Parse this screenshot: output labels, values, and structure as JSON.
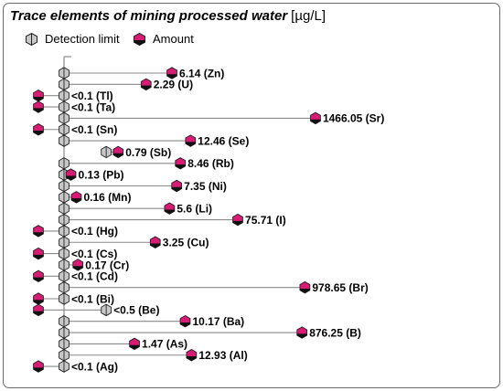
{
  "title": "Trace elements of mining processed water",
  "unit": "[µg/L]",
  "legend": {
    "detection_limit": "Detection limit",
    "amount": "Amount"
  },
  "colors": {
    "detection_limit_fill": "#c8c8c8",
    "amount_fill": "#d81b74",
    "stem": "#8a8a8a",
    "outline": "#222222"
  },
  "chart_data": {
    "type": "dot-range",
    "title": "Trace elements of mining processed water",
    "unit": "µg/L",
    "scale": "log",
    "categories": [
      "Zn",
      "U",
      "Tl",
      "Ta",
      "Sr",
      "Sn",
      "Se",
      "Sb",
      "Rb",
      "Pb",
      "Ni",
      "Mn",
      "Li",
      "I",
      "Hg",
      "Cu",
      "Cs",
      "Cr",
      "Cd",
      "Br",
      "Bi",
      "Be",
      "Ba",
      "B",
      "As",
      "Al",
      "Ag"
    ],
    "series": [
      {
        "name": "Detection limit",
        "values": [
          0.1,
          0.1,
          0.1,
          0.1,
          0.1,
          0.1,
          0.1,
          0.5,
          0.1,
          0.1,
          0.1,
          0.1,
          0.1,
          0.1,
          0.1,
          0.1,
          0.1,
          0.1,
          0.1,
          0.1,
          0.1,
          0.5,
          0.1,
          0.1,
          0.1,
          0.1,
          0.1
        ]
      },
      {
        "name": "Amount",
        "values": [
          6.14,
          2.29,
          null,
          null,
          1466.05,
          null,
          12.46,
          0.79,
          8.46,
          0.13,
          7.35,
          0.16,
          5.6,
          75.71,
          null,
          3.25,
          null,
          0.17,
          null,
          978.65,
          null,
          null,
          10.17,
          876.25,
          1.47,
          12.93,
          null
        ]
      }
    ],
    "labels": [
      "6.14 (Zn)",
      "2.29 (U)",
      "<0.1 (Tl)",
      "<0.1 (Ta)",
      "1466.05 (Sr)",
      "<0.1 (Sn)",
      "12.46 (Se)",
      "0.79 (Sb)",
      "8.46 (Rb)",
      "0.13 (Pb)",
      "7.35 (Ni)",
      "0.16 (Mn)",
      "5.6 (Li)",
      "75.71 (I)",
      "<0.1 (Hg)",
      "3.25 (Cu)",
      "<0.1 (Cs)",
      "0.17 (Cr)",
      "<0.1 (Cd)",
      "978.65 (Br)",
      "<0.1 (Bi)",
      "<0.5 (Be)",
      "10.17 (Ba)",
      "876.25 (B)",
      "1.47 (As)",
      "12.93 (Al)",
      "<0.1 (Ag)"
    ],
    "below_detection": [
      false,
      false,
      true,
      true,
      false,
      true,
      false,
      false,
      false,
      false,
      false,
      false,
      false,
      false,
      true,
      false,
      true,
      false,
      true,
      false,
      true,
      true,
      false,
      false,
      false,
      false,
      true
    ],
    "amount_left_of_axis": [
      false,
      false,
      true,
      true,
      false,
      true,
      false,
      false,
      false,
      false,
      false,
      false,
      false,
      false,
      true,
      false,
      true,
      false,
      true,
      false,
      true,
      true,
      false,
      false,
      false,
      false,
      true
    ]
  }
}
